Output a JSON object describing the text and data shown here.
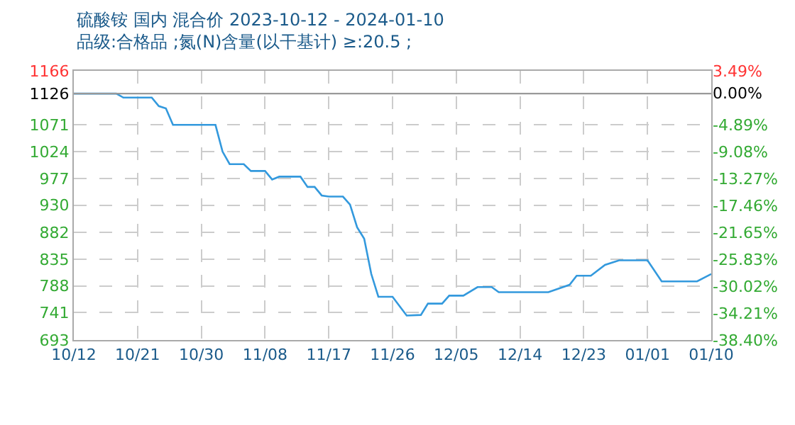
{
  "chart_data": {
    "type": "line",
    "title": "硫酸铵 国内 混合价 2023-10-12 - 2024-01-10",
    "subtitle": "品级:合格品 ;氮(N)含量(以干基计) ≥:20.5 ;",
    "x": [
      "2023-10-12",
      "2023-10-18",
      "2023-10-19",
      "2023-10-23",
      "2023-10-24",
      "2023-10-25",
      "2023-10-26",
      "2023-11-01",
      "2023-11-02",
      "2023-11-03",
      "2023-11-05",
      "2023-11-06",
      "2023-11-08",
      "2023-11-09",
      "2023-11-10",
      "2023-11-13",
      "2023-11-14",
      "2023-11-15",
      "2023-11-16",
      "2023-11-17",
      "2023-11-19",
      "2023-11-20",
      "2023-11-21",
      "2023-11-22",
      "2023-11-23",
      "2023-11-24",
      "2023-11-26",
      "2023-11-28",
      "2023-11-30",
      "2023-12-01",
      "2023-12-03",
      "2023-12-04",
      "2023-12-06",
      "2023-12-08",
      "2023-12-10",
      "2023-12-11",
      "2023-12-18",
      "2023-12-21",
      "2023-12-22",
      "2023-12-24",
      "2023-12-26",
      "2023-12-28",
      "2024-01-01",
      "2024-01-03",
      "2024-01-08",
      "2024-01-10"
    ],
    "series": [
      {
        "color": "#3399dd",
        "values": [
          1126,
          1126,
          1119,
          1119,
          1104,
          1100,
          1071,
          1071,
          1024,
          1002,
          1002,
          990,
          990,
          975,
          980,
          980,
          962,
          962,
          947,
          945,
          945,
          931,
          891,
          871,
          809,
          769,
          769,
          736,
          737,
          757,
          757,
          771,
          771,
          786,
          786,
          777,
          777,
          790,
          806,
          806,
          825,
          833,
          833,
          796,
          796,
          809
        ]
      }
    ],
    "xlim": [
      "2023-10-12",
      "2024-01-10"
    ],
    "xticks": [
      {
        "value": "2023-10-12",
        "label": "10/12"
      },
      {
        "value": "2023-10-21",
        "label": "10/21"
      },
      {
        "value": "2023-10-30",
        "label": "10/30"
      },
      {
        "value": "2023-11-08",
        "label": "11/08"
      },
      {
        "value": "2023-11-17",
        "label": "11/17"
      },
      {
        "value": "2023-11-26",
        "label": "11/26"
      },
      {
        "value": "2023-12-05",
        "label": "12/05"
      },
      {
        "value": "2023-12-14",
        "label": "12/14"
      },
      {
        "value": "2023-12-23",
        "label": "12/23"
      },
      {
        "value": "2024-01-01",
        "label": "01/01"
      },
      {
        "value": "2024-01-10",
        "label": "01/10"
      }
    ],
    "ylim": [
      693,
      1166
    ],
    "yticks": [
      693,
      741,
      788,
      835,
      882,
      930,
      977,
      1024,
      1071,
      1126,
      1166
    ],
    "y2lim": [
      -38.4,
      3.49
    ],
    "y2ticks": [
      {
        "value": -38.4,
        "label": "-38.40%"
      },
      {
        "value": -34.21,
        "label": "-34.21%"
      },
      {
        "value": -30.02,
        "label": "-30.02%"
      },
      {
        "value": -25.83,
        "label": "-25.83%"
      },
      {
        "value": -21.65,
        "label": "-21.65%"
      },
      {
        "value": -17.46,
        "label": "-17.46%"
      },
      {
        "value": -13.27,
        "label": "-13.27%"
      },
      {
        "value": -9.08,
        "label": "-9.08%"
      },
      {
        "value": -4.89,
        "label": "-4.89%"
      },
      {
        "value": 0,
        "label": "0.00%"
      },
      {
        "value": 3.49,
        "label": "3.49%"
      }
    ],
    "ref_lines": [
      {
        "axis": "y",
        "value": 1126,
        "color": "#999999"
      }
    ],
    "grid": true,
    "marker": "none",
    "line_style": "solid"
  }
}
